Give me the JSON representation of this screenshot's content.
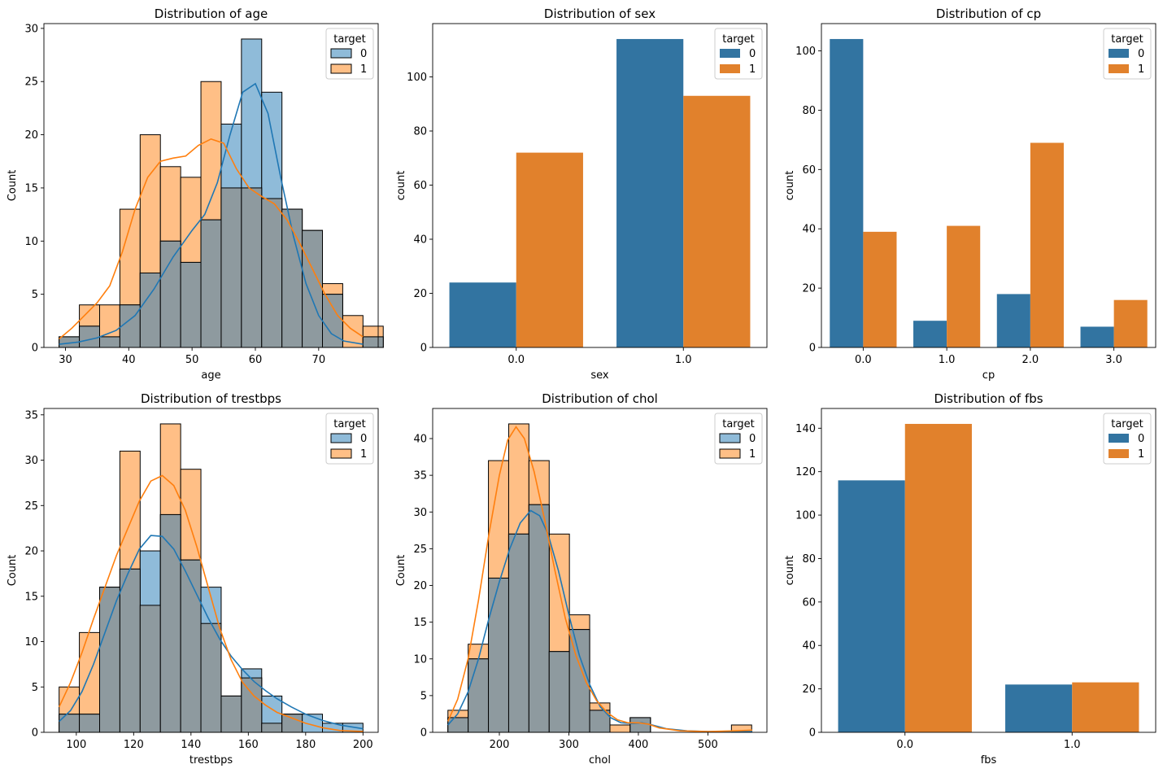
{
  "colors": {
    "c0": "#1f77b4",
    "c1": "#ff7f0e",
    "hist0": "#8fbbd9",
    "hist1": "#ffbf86",
    "overlap": "#8e9a9f",
    "bar0": "#3274a1",
    "bar1": "#e1812c"
  },
  "chart_data": [
    {
      "type": "histogram",
      "title": "Distribution of age",
      "xlabel": "age",
      "ylabel": "Count",
      "xlim": [
        26.6,
        79.4
      ],
      "ylim": [
        0,
        30.45
      ],
      "xticks": [
        30,
        40,
        50,
        60,
        70
      ],
      "yticks": [
        0,
        5,
        10,
        15,
        20,
        25,
        30
      ],
      "bin_start": 29,
      "bin_width": 3.2,
      "series": [
        {
          "name": "0",
          "values": [
            1,
            2,
            1,
            4,
            7,
            10,
            8,
            12,
            21,
            29,
            24,
            13,
            11,
            5,
            0,
            1
          ]
        },
        {
          "name": "1",
          "values": [
            1,
            4,
            4,
            13,
            20,
            17,
            16,
            25,
            15,
            15,
            14,
            13,
            11,
            6,
            3,
            2
          ]
        }
      ],
      "kde": [
        {
          "name": "0",
          "points": [
            [
              29,
              0.3
            ],
            [
              32,
              0.5
            ],
            [
              35,
              0.9
            ],
            [
              38,
              1.6
            ],
            [
              41,
              3
            ],
            [
              44,
              5.5
            ],
            [
              47,
              8.5
            ],
            [
              50,
              11
            ],
            [
              52,
              12.5
            ],
            [
              54,
              15.5
            ],
            [
              56,
              20
            ],
            [
              58,
              24
            ],
            [
              60,
              24.8
            ],
            [
              62,
              22
            ],
            [
              64,
              16
            ],
            [
              66,
              10.5
            ],
            [
              68,
              6
            ],
            [
              70,
              3
            ],
            [
              72,
              1.3
            ],
            [
              74,
              0.6
            ],
            [
              77,
              0.3
            ]
          ]
        },
        {
          "name": "1",
          "points": [
            [
              29,
              0.8
            ],
            [
              31,
              1.8
            ],
            [
              33,
              3
            ],
            [
              35,
              4.2
            ],
            [
              37,
              5.8
            ],
            [
              39,
              9
            ],
            [
              41,
              13
            ],
            [
              43,
              16
            ],
            [
              45,
              17.5
            ],
            [
              47,
              17.8
            ],
            [
              49,
              18
            ],
            [
              51,
              19
            ],
            [
              53,
              19.6
            ],
            [
              55,
              19.2
            ],
            [
              57,
              16.8
            ],
            [
              59,
              15
            ],
            [
              61,
              14.2
            ],
            [
              63,
              13.5
            ],
            [
              65,
              12
            ],
            [
              67,
              9.8
            ],
            [
              69,
              7.4
            ],
            [
              71,
              5
            ],
            [
              73,
              3
            ],
            [
              75,
              1.8
            ],
            [
              77,
              1
            ]
          ]
        }
      ],
      "legend": {
        "title": "target",
        "labels": [
          "0",
          "1"
        ],
        "placement": "upper right"
      }
    },
    {
      "type": "bar",
      "title": "Distribution of sex",
      "xlabel": "sex",
      "ylabel": "count",
      "categories": [
        "0.0",
        "1.0"
      ],
      "ylim": [
        0,
        119.7
      ],
      "yticks": [
        0,
        20,
        40,
        60,
        80,
        100
      ],
      "series": [
        {
          "name": "0",
          "values": [
            24,
            114
          ]
        },
        {
          "name": "1",
          "values": [
            72,
            93
          ]
        }
      ],
      "legend": {
        "title": "target",
        "labels": [
          "0",
          "1"
        ],
        "placement": "upper right"
      }
    },
    {
      "type": "bar",
      "title": "Distribution of cp",
      "xlabel": "cp",
      "ylabel": "count",
      "categories": [
        "0.0",
        "1.0",
        "2.0",
        "3.0"
      ],
      "ylim": [
        0,
        109.2
      ],
      "yticks": [
        0,
        20,
        40,
        60,
        80,
        100
      ],
      "series": [
        {
          "name": "0",
          "values": [
            104,
            9,
            18,
            7
          ]
        },
        {
          "name": "1",
          "values": [
            39,
            41,
            69,
            16
          ]
        }
      ],
      "legend": {
        "title": "target",
        "labels": [
          "0",
          "1"
        ],
        "placement": "upper right"
      }
    },
    {
      "type": "histogram",
      "title": "Distribution of trestbps",
      "xlabel": "trestbps",
      "ylabel": "Count",
      "xlim": [
        88.7,
        205.3
      ],
      "ylim": [
        0,
        35.7
      ],
      "xticks": [
        100,
        120,
        140,
        160,
        180,
        200
      ],
      "yticks": [
        0,
        5,
        10,
        15,
        20,
        25,
        30,
        35
      ],
      "bin_start": 94,
      "bin_width": 7.0667,
      "series": [
        {
          "name": "0",
          "values": [
            2,
            2,
            16,
            18,
            20,
            24,
            19,
            16,
            4,
            7,
            4,
            2,
            2,
            1,
            1
          ]
        },
        {
          "name": "1",
          "values": [
            5,
            11,
            16,
            31,
            14,
            34,
            29,
            12,
            4,
            6,
            1,
            2,
            0,
            0,
            0
          ]
        }
      ],
      "kde": [
        {
          "name": "0",
          "points": [
            [
              94,
              1.2
            ],
            [
              98,
              2.4
            ],
            [
              102,
              4.5
            ],
            [
              106,
              7.5
            ],
            [
              110,
              11
            ],
            [
              114,
              14.5
            ],
            [
              118,
              17.5
            ],
            [
              122,
              20.2
            ],
            [
              126,
              21.7
            ],
            [
              130,
              21.6
            ],
            [
              134,
              20.2
            ],
            [
              138,
              17.8
            ],
            [
              142,
              15.2
            ],
            [
              146,
              12.6
            ],
            [
              150,
              10.3
            ],
            [
              154,
              8.4
            ],
            [
              158,
              6.9
            ],
            [
              162,
              5.6
            ],
            [
              166,
              4.6
            ],
            [
              170,
              3.7
            ],
            [
              175,
              2.8
            ],
            [
              180,
              2
            ],
            [
              186,
              1.3
            ],
            [
              192,
              0.8
            ],
            [
              200,
              0.4
            ]
          ]
        },
        {
          "name": "1",
          "points": [
            [
              94,
              2.8
            ],
            [
              98,
              5.5
            ],
            [
              102,
              8.8
            ],
            [
              106,
              12.5
            ],
            [
              110,
              16
            ],
            [
              114,
              19.5
            ],
            [
              118,
              22.5
            ],
            [
              122,
              25.5
            ],
            [
              126,
              27.7
            ],
            [
              130,
              28.3
            ],
            [
              134,
              27.2
            ],
            [
              138,
              24.5
            ],
            [
              142,
              20.5
            ],
            [
              146,
              16
            ],
            [
              150,
              11.5
            ],
            [
              154,
              8
            ],
            [
              158,
              5.5
            ],
            [
              162,
              4
            ],
            [
              166,
              3
            ],
            [
              170,
              2.2
            ],
            [
              175,
              1.6
            ],
            [
              180,
              1
            ],
            [
              186,
              0.5
            ],
            [
              192,
              0.2
            ],
            [
              200,
              0.1
            ]
          ]
        }
      ],
      "legend": {
        "title": "target",
        "labels": [
          "0",
          "1"
        ],
        "placement": "upper right"
      }
    },
    {
      "type": "histogram",
      "title": "Distribution of chol",
      "xlabel": "chol",
      "ylabel": "Count",
      "xlim": [
        104.05,
        584.95
      ],
      "ylim": [
        0,
        44.1
      ],
      "xticks": [
        200,
        300,
        400,
        500
      ],
      "yticks": [
        0,
        5,
        10,
        15,
        20,
        25,
        30,
        35,
        40
      ],
      "bin_start": 126,
      "bin_width": 29.1333,
      "series": [
        {
          "name": "0",
          "values": [
            2,
            10,
            21,
            27,
            31,
            11,
            14,
            3,
            0,
            2,
            0,
            0,
            0,
            0,
            0
          ]
        },
        {
          "name": "1",
          "values": [
            3,
            12,
            37,
            42,
            37,
            27,
            16,
            4,
            1,
            2,
            0,
            0,
            0,
            0,
            1
          ]
        }
      ],
      "kde": [
        {
          "name": "0",
          "points": [
            [
              126,
              1
            ],
            [
              140,
              2.5
            ],
            [
              155,
              5.5
            ],
            [
              170,
              10
            ],
            [
              185,
              15.5
            ],
            [
              200,
              20.5
            ],
            [
              215,
              25
            ],
            [
              230,
              28.5
            ],
            [
              245,
              30.2
            ],
            [
              258,
              29.5
            ],
            [
              270,
              27
            ],
            [
              285,
              22
            ],
            [
              300,
              16
            ],
            [
              315,
              10.5
            ],
            [
              330,
              6.5
            ],
            [
              345,
              3.5
            ],
            [
              360,
              2
            ],
            [
              375,
              1.3
            ],
            [
              390,
              1.2
            ],
            [
              405,
              1.3
            ],
            [
              420,
              1
            ],
            [
              440,
              0.5
            ],
            [
              470,
              0.2
            ],
            [
              500,
              0.1
            ],
            [
              540,
              0.1
            ],
            [
              564,
              0.1
            ]
          ]
        },
        {
          "name": "1",
          "points": [
            [
              126,
              1.5
            ],
            [
              140,
              4.5
            ],
            [
              155,
              10
            ],
            [
              170,
              18
            ],
            [
              185,
              27
            ],
            [
              200,
              35
            ],
            [
              212,
              39.8
            ],
            [
              224,
              41.6
            ],
            [
              236,
              40
            ],
            [
              250,
              35.5
            ],
            [
              265,
              29
            ],
            [
              280,
              22
            ],
            [
              295,
              15.5
            ],
            [
              310,
              10.5
            ],
            [
              325,
              6.8
            ],
            [
              340,
              4.3
            ],
            [
              355,
              2.7
            ],
            [
              370,
              1.7
            ],
            [
              385,
              1.3
            ],
            [
              400,
              1.3
            ],
            [
              415,
              1.1
            ],
            [
              430,
              0.6
            ],
            [
              460,
              0.2
            ],
            [
              500,
              0.1
            ],
            [
              540,
              0.2
            ],
            [
              564,
              0.3
            ]
          ]
        }
      ],
      "legend": {
        "title": "target",
        "labels": [
          "0",
          "1"
        ],
        "placement": "upper right"
      }
    },
    {
      "type": "bar",
      "title": "Distribution of fbs",
      "xlabel": "fbs",
      "ylabel": "count",
      "categories": [
        "0.0",
        "1.0"
      ],
      "ylim": [
        0,
        149.1
      ],
      "yticks": [
        0,
        20,
        40,
        60,
        80,
        100,
        120,
        140
      ],
      "series": [
        {
          "name": "0",
          "values": [
            116,
            22
          ]
        },
        {
          "name": "1",
          "values": [
            142,
            23
          ]
        }
      ],
      "legend": {
        "title": "target",
        "labels": [
          "0",
          "1"
        ],
        "placement": "upper right"
      }
    }
  ]
}
